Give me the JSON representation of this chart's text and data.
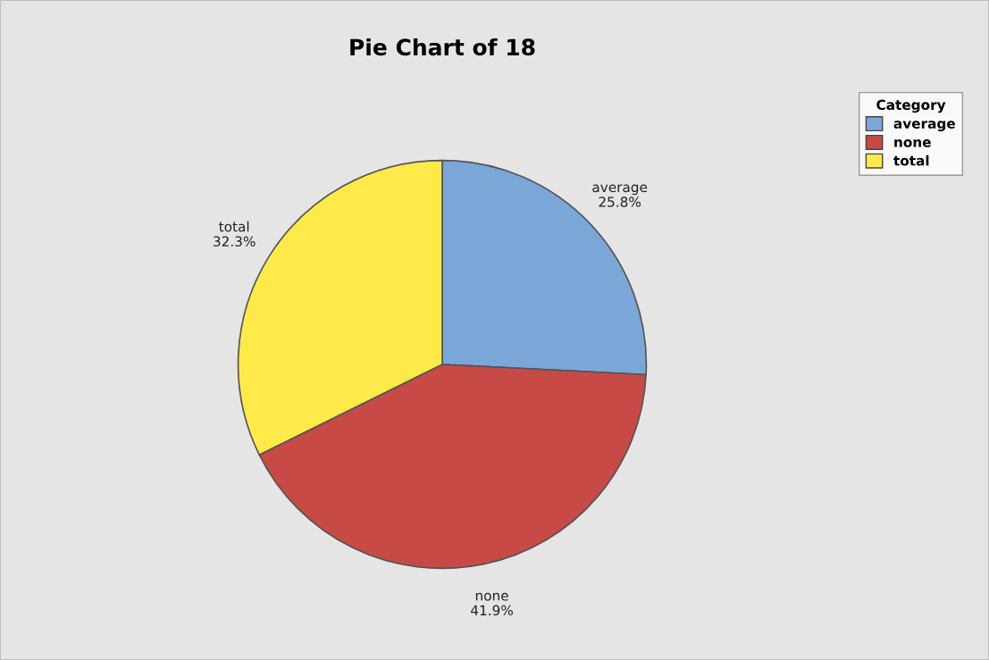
{
  "chart_data": {
    "type": "pie",
    "title": "Pie Chart of 18",
    "categories": [
      "average",
      "none",
      "total"
    ],
    "values": [
      25.8,
      41.9,
      32.3
    ],
    "value_labels": [
      "25.8%",
      "41.9%",
      "32.3%"
    ],
    "colors": [
      "#7ba7d8",
      "#c84a46",
      "#ffea4a"
    ],
    "legend_title": "Category",
    "legend": "top right"
  }
}
